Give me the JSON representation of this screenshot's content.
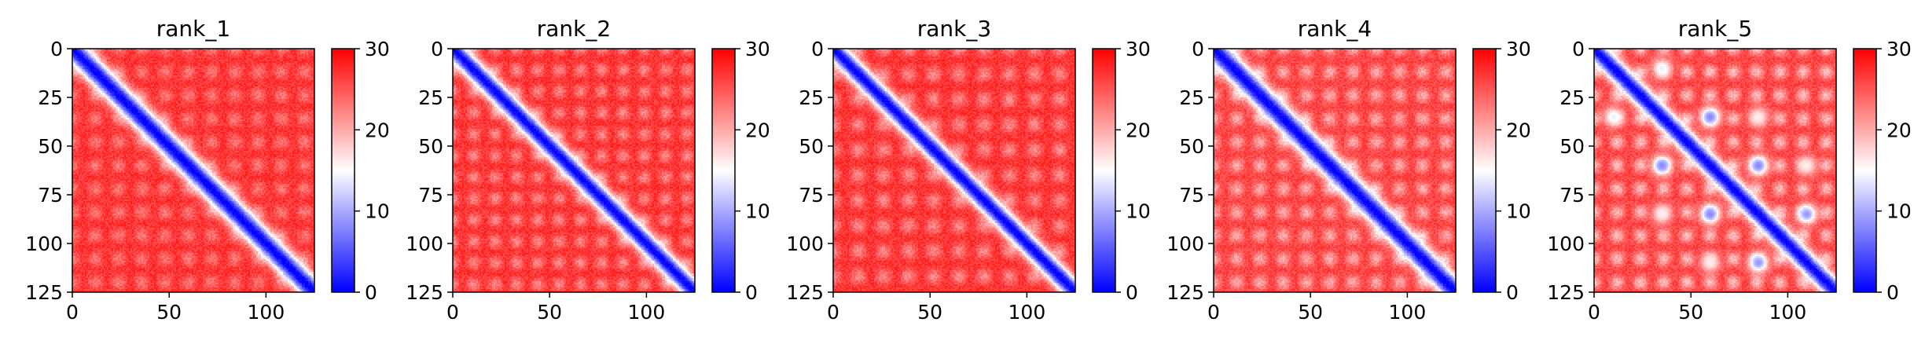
{
  "chart_data": [
    {
      "type": "heatmap",
      "title": "rank_1",
      "x_range": [
        0,
        125
      ],
      "y_range": [
        0,
        125
      ],
      "y_inverted": true,
      "x_ticks": [
        0,
        50,
        100
      ],
      "y_ticks": [
        0,
        25,
        50,
        75,
        100,
        125
      ],
      "colorbar": {
        "range": [
          0,
          30
        ],
        "ticks": [
          0,
          10,
          20,
          30
        ],
        "colormap": [
          "#0000ff",
          "#ffffff",
          "#ff0000"
        ]
      },
      "pattern": {
        "diagonal_value": 0,
        "band_width": 8,
        "background_value": 27,
        "checker_amp": 4,
        "checker_period": 12,
        "off_diagonal_spots": []
      }
    },
    {
      "type": "heatmap",
      "title": "rank_2",
      "x_range": [
        0,
        125
      ],
      "y_range": [
        0,
        125
      ],
      "y_inverted": true,
      "x_ticks": [
        0,
        50,
        100
      ],
      "y_ticks": [
        0,
        25,
        50,
        75,
        100,
        125
      ],
      "colorbar": {
        "range": [
          0,
          30
        ],
        "ticks": [
          0,
          10,
          20,
          30
        ],
        "colormap": [
          "#0000ff",
          "#ffffff",
          "#ff0000"
        ]
      },
      "pattern": {
        "diagonal_value": 0,
        "band_width": 7,
        "background_value": 27,
        "checker_amp": 5,
        "checker_period": 11,
        "off_diagonal_spots": []
      }
    },
    {
      "type": "heatmap",
      "title": "rank_3",
      "x_range": [
        0,
        125
      ],
      "y_range": [
        0,
        125
      ],
      "y_inverted": true,
      "x_ticks": [
        0,
        50,
        100
      ],
      "y_ticks": [
        0,
        25,
        50,
        75,
        100,
        125
      ],
      "colorbar": {
        "range": [
          0,
          30
        ],
        "ticks": [
          0,
          10,
          20,
          30
        ],
        "colormap": [
          "#0000ff",
          "#ffffff",
          "#ff0000"
        ]
      },
      "pattern": {
        "diagonal_value": 0,
        "band_width": 7,
        "background_value": 27,
        "checker_amp": 5,
        "checker_period": 13,
        "off_diagonal_spots": []
      }
    },
    {
      "type": "heatmap",
      "title": "rank_4",
      "x_range": [
        0,
        125
      ],
      "y_range": [
        0,
        125
      ],
      "y_inverted": true,
      "x_ticks": [
        0,
        50,
        100
      ],
      "y_ticks": [
        0,
        25,
        50,
        75,
        100,
        125
      ],
      "colorbar": {
        "range": [
          0,
          30
        ],
        "ticks": [
          0,
          10,
          20,
          30
        ],
        "colormap": [
          "#0000ff",
          "#ffffff",
          "#ff0000"
        ]
      },
      "pattern": {
        "diagonal_value": 0,
        "band_width": 8,
        "background_value": 26,
        "checker_amp": 6,
        "checker_period": 12,
        "off_diagonal_spots": []
      }
    },
    {
      "type": "heatmap",
      "title": "rank_5",
      "x_range": [
        0,
        125
      ],
      "y_range": [
        0,
        125
      ],
      "y_inverted": true,
      "x_ticks": [
        0,
        50,
        100
      ],
      "y_ticks": [
        0,
        25,
        50,
        75,
        100,
        125
      ],
      "colorbar": {
        "range": [
          0,
          30
        ],
        "ticks": [
          0,
          10,
          20,
          30
        ],
        "colormap": [
          "#0000ff",
          "#ffffff",
          "#ff0000"
        ]
      },
      "pattern": {
        "diagonal_value": 0,
        "band_width": 7,
        "background_value": 26,
        "checker_amp": 7,
        "checker_period": 12,
        "off_diagonal_spots": [
          {
            "x": 60,
            "y": 35,
            "value": 8
          },
          {
            "x": 35,
            "y": 60,
            "value": 8
          },
          {
            "x": 85,
            "y": 60,
            "value": 8
          },
          {
            "x": 60,
            "y": 85,
            "value": 8
          },
          {
            "x": 110,
            "y": 85,
            "value": 9
          },
          {
            "x": 85,
            "y": 110,
            "value": 9
          },
          {
            "x": 35,
            "y": 10,
            "value": 14
          },
          {
            "x": 10,
            "y": 35,
            "value": 14
          },
          {
            "x": 85,
            "y": 35,
            "value": 16
          },
          {
            "x": 35,
            "y": 85,
            "value": 16
          },
          {
            "x": 110,
            "y": 60,
            "value": 16
          },
          {
            "x": 60,
            "y": 110,
            "value": 16
          }
        ]
      }
    }
  ]
}
